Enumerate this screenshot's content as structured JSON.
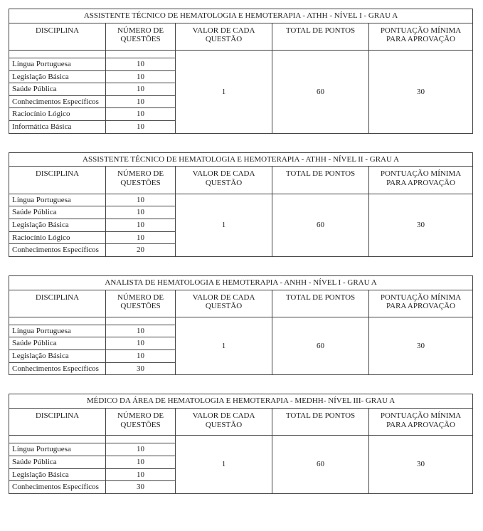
{
  "headers": {
    "disciplina": "DISCIPLINA",
    "numero": "NÚMERO DE QUESTÕES",
    "valor": "VALOR DE CADA QUESTÃO",
    "total": "TOTAL DE PONTOS",
    "pontuacao": "PONTUAÇÃO MÍNIMA PARA APROVAÇÃO"
  },
  "tables": [
    {
      "title": "ASSISTENTE TÉCNICO DE HEMATOLOGIA E HEMOTERAPIA - ATHH - NÍVEL I - GRAU A",
      "valor": "1",
      "total": "60",
      "pontuacao": "30",
      "spacer_top": true,
      "rows": [
        {
          "disc": "Língua Portuguesa",
          "num": "10"
        },
        {
          "disc": "Legislação Básica",
          "num": "10"
        },
        {
          "disc": "Saúde Pública",
          "num": "10"
        },
        {
          "disc": "Conhecimentos Específicos",
          "num": "10"
        },
        {
          "disc": "Raciocínio Lógico",
          "num": "10"
        },
        {
          "disc": "Informática Básica",
          "num": "10"
        }
      ]
    },
    {
      "title": "ASSISTENTE TÉCNICO DE HEMATOLOGIA E HEMOTERAPIA - ATHH - NÍVEL II - GRAU A",
      "valor": "1",
      "total": "60",
      "pontuacao": "30",
      "spacer_top": false,
      "rows": [
        {
          "disc": "Língua Portuguesa",
          "num": "10"
        },
        {
          "disc": "Saúde Pública",
          "num": "10"
        },
        {
          "disc": "Legislação Básica",
          "num": "10"
        },
        {
          "disc": "Raciocínio Lógico",
          "num": "10"
        },
        {
          "disc": "Conhecimentos Específicos",
          "num": "20"
        }
      ]
    },
    {
      "title": "ANALISTA DE HEMATOLOGIA E HEMOTERAPIA - ANHH - NÍVEL I - GRAU A",
      "valor": "1",
      "total": "60",
      "pontuacao": "30",
      "spacer_top": true,
      "rows": [
        {
          "disc": "Língua Portuguesa",
          "num": "10"
        },
        {
          "disc": "Saúde Pública",
          "num": "10"
        },
        {
          "disc": "Legislação Básica",
          "num": "10"
        },
        {
          "disc": "Conhecimentos Específicos",
          "num": "30"
        }
      ]
    },
    {
      "title": "MÉDICO DA ÁREA DE HEMATOLOGIA E HEMOTERAPIA - MEDHH- NÍVEL III- GRAU A",
      "valor": "1",
      "total": "60",
      "pontuacao": "30",
      "spacer_top": true,
      "rows": [
        {
          "disc": "Língua Portuguesa",
          "num": "10"
        },
        {
          "disc": "Saúde Pública",
          "num": "10"
        },
        {
          "disc": "Legislação Básica",
          "num": "10"
        },
        {
          "disc": "Conhecimentos Específicos",
          "num": "30"
        }
      ]
    }
  ]
}
